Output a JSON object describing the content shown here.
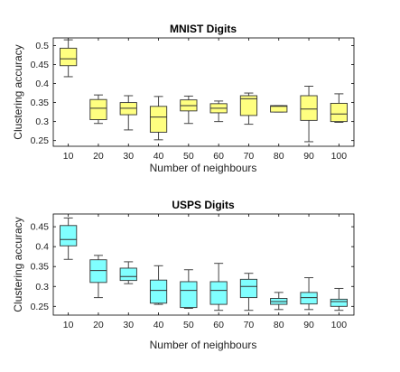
{
  "chart_data": [
    {
      "type": "box",
      "title": "MNIST Digits",
      "xlabel": "Number of neighbours",
      "ylabel": "Clustering accuracy",
      "categories": [
        "10",
        "20",
        "30",
        "40",
        "50",
        "60",
        "70",
        "80",
        "90",
        "100"
      ],
      "ylim": [
        0.235,
        0.52
      ],
      "yticks": [
        "0.25",
        "0.3",
        "0.35",
        "0.4",
        "0.45",
        "0.5"
      ],
      "box_color": "#ffff80",
      "boxes": [
        {
          "min": 0.418,
          "q1": 0.447,
          "median": 0.465,
          "q3": 0.493,
          "max": 0.515
        },
        {
          "min": 0.295,
          "q1": 0.305,
          "median": 0.335,
          "q3": 0.358,
          "max": 0.37
        },
        {
          "min": 0.278,
          "q1": 0.318,
          "median": 0.335,
          "q3": 0.35,
          "max": 0.368
        },
        {
          "min": 0.252,
          "q1": 0.272,
          "median": 0.312,
          "q3": 0.34,
          "max": 0.366
        },
        {
          "min": 0.295,
          "q1": 0.328,
          "median": 0.342,
          "q3": 0.357,
          "max": 0.367
        },
        {
          "min": 0.3,
          "q1": 0.323,
          "median": 0.335,
          "q3": 0.347,
          "max": 0.354
        },
        {
          "min": 0.293,
          "q1": 0.316,
          "median": 0.36,
          "q3": 0.368,
          "max": 0.375
        },
        {
          "min": 0.325,
          "q1": 0.325,
          "median": 0.34,
          "q3": 0.342,
          "max": 0.342
        },
        {
          "min": 0.247,
          "q1": 0.303,
          "median": 0.333,
          "q3": 0.368,
          "max": 0.393
        },
        {
          "min": 0.298,
          "q1": 0.3,
          "median": 0.32,
          "q3": 0.348,
          "max": 0.373
        }
      ]
    },
    {
      "type": "box",
      "title": "USPS Digits",
      "xlabel": "Number of neighbours",
      "ylabel": "Clustering accuracy",
      "categories": [
        "10",
        "20",
        "30",
        "40",
        "50",
        "60",
        "70",
        "80",
        "90",
        "100"
      ],
      "ylim": [
        0.228,
        0.482
      ],
      "yticks": [
        "0.25",
        "0.3",
        "0.35",
        "0.4",
        "0.45"
      ],
      "box_color": "#80ffff",
      "boxes": [
        {
          "min": 0.368,
          "q1": 0.402,
          "median": 0.418,
          "q3": 0.453,
          "max": 0.472
        },
        {
          "min": 0.272,
          "q1": 0.31,
          "median": 0.34,
          "q3": 0.367,
          "max": 0.378
        },
        {
          "min": 0.307,
          "q1": 0.315,
          "median": 0.325,
          "q3": 0.346,
          "max": 0.362
        },
        {
          "min": 0.255,
          "q1": 0.258,
          "median": 0.29,
          "q3": 0.316,
          "max": 0.352
        },
        {
          "min": 0.245,
          "q1": 0.247,
          "median": 0.29,
          "q3": 0.312,
          "max": 0.342
        },
        {
          "min": 0.24,
          "q1": 0.255,
          "median": 0.29,
          "q3": 0.312,
          "max": 0.358
        },
        {
          "min": 0.24,
          "q1": 0.272,
          "median": 0.3,
          "q3": 0.318,
          "max": 0.333
        },
        {
          "min": 0.242,
          "q1": 0.255,
          "median": 0.262,
          "q3": 0.27,
          "max": 0.285
        },
        {
          "min": 0.242,
          "q1": 0.256,
          "median": 0.272,
          "q3": 0.285,
          "max": 0.322
        },
        {
          "min": 0.24,
          "q1": 0.25,
          "median": 0.262,
          "q3": 0.268,
          "max": 0.295
        }
      ]
    }
  ]
}
